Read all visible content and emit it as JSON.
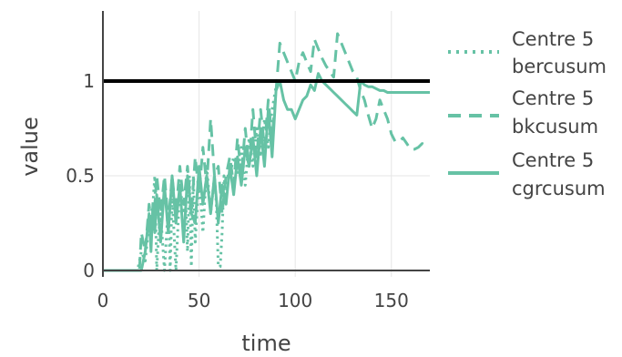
{
  "chart_data": {
    "type": "line",
    "title": "",
    "xlabel": "time",
    "ylabel": "value",
    "xlim": [
      0,
      170
    ],
    "ylim": [
      -0.03,
      1.35
    ],
    "xticks": [
      0,
      50,
      100,
      150
    ],
    "yticks": [
      0,
      0.5,
      1
    ],
    "ytick_labels": [
      "0",
      "0.5",
      "1"
    ],
    "grid": true,
    "legend_placement": "right",
    "color": "#66c2a5",
    "threshold": {
      "y": 1,
      "color": "#000000"
    },
    "series": [
      {
        "name": "Centre 5 bercusum",
        "dash": "dot",
        "x": [
          0,
          18,
          20,
          22,
          24,
          26,
          27,
          28,
          29,
          30,
          32,
          34,
          35,
          36,
          38,
          40,
          42,
          43,
          44,
          45,
          46,
          47,
          48,
          50,
          52,
          54,
          56,
          58,
          59,
          60,
          61,
          62,
          63,
          64,
          65,
          66,
          68,
          70,
          72,
          74,
          76,
          78,
          80,
          82,
          84,
          86,
          88,
          90
        ],
        "y": [
          0,
          0,
          0.1,
          0.05,
          0.25,
          0.35,
          0.5,
          0,
          0.2,
          0.3,
          0,
          0.35,
          0,
          0.4,
          0,
          0.45,
          0.3,
          0.38,
          0.1,
          0.5,
          0.02,
          0.5,
          0.15,
          0.5,
          0.2,
          0.55,
          0.3,
          0.5,
          0.35,
          0.02,
          0.02,
          0.2,
          0.5,
          0.4,
          0.5,
          0.5,
          0.6,
          0.5,
          0.65,
          0.45,
          0.7,
          0.55,
          0.75,
          0.6,
          0.8,
          0.65,
          0.85,
          0.97
        ]
      },
      {
        "name": "Centre 5 bkcusum",
        "dash": "dash",
        "x": [
          0,
          19,
          20,
          22,
          24,
          26,
          28,
          30,
          32,
          34,
          36,
          38,
          40,
          42,
          44,
          46,
          48,
          50,
          52,
          54,
          56,
          58,
          60,
          62,
          64,
          66,
          68,
          70,
          72,
          74,
          76,
          78,
          80,
          82,
          84,
          86,
          88,
          90,
          92,
          94,
          96,
          98,
          100,
          102,
          104,
          106,
          108,
          110,
          112,
          114,
          116,
          118,
          120,
          122,
          124,
          126,
          128,
          130,
          132,
          134,
          136,
          138,
          140,
          142,
          144,
          146,
          148,
          150,
          152,
          154,
          156,
          158,
          160,
          162,
          164,
          166,
          168,
          170
        ],
        "y": [
          0,
          0,
          0.2,
          0.1,
          0.35,
          0.2,
          0.5,
          0.3,
          0.5,
          0.25,
          0.5,
          0.3,
          0.55,
          0.35,
          0.55,
          0.3,
          0.6,
          0.4,
          0.65,
          0.45,
          0.8,
          0.5,
          0.55,
          0.3,
          0.5,
          0.6,
          0.45,
          0.7,
          0.5,
          0.75,
          0.55,
          0.85,
          0.6,
          0.85,
          0.65,
          0.9,
          0.7,
          0.95,
          1.2,
          1.15,
          1.1,
          1.05,
          1.0,
          1.1,
          1.15,
          1.1,
          1.05,
          1.22,
          1.17,
          1.12,
          1.08,
          1.05,
          1.02,
          1.25,
          1.2,
          1.15,
          1.1,
          1.05,
          1.02,
          0.95,
          0.9,
          0.82,
          0.75,
          0.8,
          0.9,
          0.85,
          0.8,
          0.72,
          0.68,
          0.68,
          0.7,
          0.67,
          0.64,
          0.64,
          0.65,
          0.67,
          0.66,
          0.66
        ]
      },
      {
        "name": "Centre 5 cgrcusum",
        "dash": "solid",
        "x": [
          0,
          20,
          22,
          24,
          25,
          26,
          27,
          28,
          30,
          32,
          34,
          36,
          38,
          40,
          42,
          44,
          46,
          48,
          50,
          52,
          54,
          56,
          58,
          60,
          62,
          64,
          66,
          68,
          70,
          72,
          74,
          76,
          78,
          80,
          82,
          84,
          86,
          88,
          90,
          92,
          94,
          96,
          98,
          100,
          102,
          104,
          106,
          108,
          110,
          112,
          114,
          116,
          118,
          120,
          122,
          124,
          126,
          128,
          130,
          132,
          134,
          136,
          138,
          140,
          142,
          144,
          146,
          148,
          150,
          152,
          154,
          156,
          158,
          160,
          162,
          164,
          166,
          168,
          170
        ],
        "y": [
          0,
          0,
          0.1,
          0.3,
          0.1,
          0.35,
          0.2,
          0.4,
          0.15,
          0.45,
          0.2,
          0.5,
          0.25,
          0.45,
          0.15,
          0.5,
          0.3,
          0.25,
          0.55,
          0.35,
          0.5,
          0.3,
          0.5,
          0.25,
          0.45,
          0.35,
          0.55,
          0.4,
          0.6,
          0.45,
          0.65,
          0.55,
          0.7,
          0.5,
          0.75,
          0.55,
          0.85,
          0.6,
          0.95,
          1.0,
          0.9,
          0.85,
          0.85,
          0.8,
          0.85,
          0.9,
          0.92,
          0.98,
          0.95,
          1.04,
          1.0,
          0.98,
          0.96,
          0.94,
          0.92,
          0.9,
          0.88,
          0.86,
          0.84,
          0.82,
          1.0,
          0.98,
          0.97,
          0.97,
          0.96,
          0.95,
          0.95,
          0.94,
          0.94,
          0.94,
          0.94,
          0.94,
          0.94,
          0.94,
          0.94,
          0.94,
          0.94,
          0.94,
          0.94
        ]
      }
    ],
    "legend": [
      {
        "line1": "Centre 5",
        "line2": "bercusum",
        "dash": "dot"
      },
      {
        "line1": "Centre 5",
        "line2": "bkcusum",
        "dash": "dash"
      },
      {
        "line1": "Centre 5",
        "line2": "cgrcusum",
        "dash": "solid"
      }
    ]
  }
}
